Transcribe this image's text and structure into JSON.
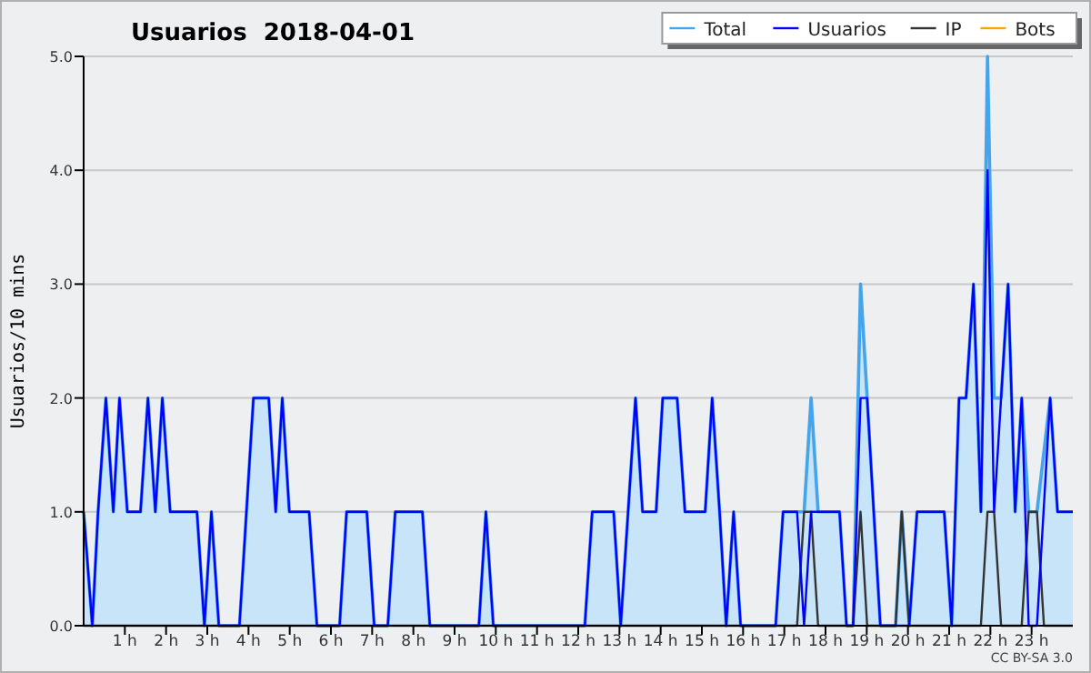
{
  "chart_data": {
    "type": "line",
    "title": "Usuarios  2018-04-01",
    "ylabel": "Usuarios/10 mins",
    "xlim": [
      0,
      24
    ],
    "xticks": [
      {
        "value": 1,
        "label": "1 h"
      },
      {
        "value": 2,
        "label": "2 h"
      },
      {
        "value": 3,
        "label": "3 h"
      },
      {
        "value": 4,
        "label": "4 h"
      },
      {
        "value": 5,
        "label": "5 h"
      },
      {
        "value": 6,
        "label": "6 h"
      },
      {
        "value": 7,
        "label": "7 h"
      },
      {
        "value": 8,
        "label": "8 h"
      },
      {
        "value": 9,
        "label": "9 h"
      },
      {
        "value": 10,
        "label": "10 h"
      },
      {
        "value": 11,
        "label": "11 h"
      },
      {
        "value": 12,
        "label": "12 h"
      },
      {
        "value": 13,
        "label": "13 h"
      },
      {
        "value": 14,
        "label": "14 h"
      },
      {
        "value": 15,
        "label": "15 h"
      },
      {
        "value": 16,
        "label": "16 h"
      },
      {
        "value": 17,
        "label": "17 h"
      },
      {
        "value": 18,
        "label": "18 h"
      },
      {
        "value": 19,
        "label": "19 h"
      },
      {
        "value": 20,
        "label": "20 h"
      },
      {
        "value": 21,
        "label": "21 h"
      },
      {
        "value": 22,
        "label": "22 h"
      },
      {
        "value": 23,
        "label": "23 h"
      }
    ],
    "ylim": [
      0,
      5
    ],
    "yticks": [
      {
        "value": 0,
        "label": "0.0"
      },
      {
        "value": 1,
        "label": "1.0"
      },
      {
        "value": 2,
        "label": "2.0"
      },
      {
        "value": 3,
        "label": "3.0"
      },
      {
        "value": 4,
        "label": "4.0"
      },
      {
        "value": 5,
        "label": "5.0"
      }
    ],
    "grid": "y",
    "legend": "top right",
    "marker": "none",
    "line_style": "solid",
    "annotations": [
      "CC BY-SA 3.0"
    ],
    "series": [
      {
        "name": "Total",
        "type": "area",
        "color": "#44a4ec",
        "x": [
          0,
          0.21,
          0.35,
          0.54,
          0.72,
          0.87,
          1.06,
          1.38,
          1.56,
          1.74,
          1.91,
          2.1,
          2.75,
          2.93,
          3.1,
          3.28,
          3.78,
          4.12,
          4.49,
          4.66,
          4.82,
          4.99,
          5.47,
          5.66,
          6.21,
          6.38,
          6.87,
          7.05,
          7.38,
          7.56,
          8.22,
          8.4,
          9.59,
          9.76,
          9.94,
          12.16,
          12.34,
          12.86,
          13.03,
          13.21,
          13.39,
          13.56,
          13.89,
          14.05,
          14.4,
          14.59,
          15.08,
          15.25,
          15.43,
          15.59,
          15.77,
          15.94,
          16.79,
          16.97,
          17.31,
          17.48,
          17.65,
          17.82,
          18.34,
          18.51,
          18.67,
          18.85,
          19.01,
          19.33,
          19.7,
          19.85,
          20.03,
          20.22,
          20.88,
          21.06,
          21.24,
          21.41,
          21.59,
          21.77,
          21.93,
          22.09,
          22.26,
          22.43,
          22.6,
          22.76,
          22.93,
          23.13,
          23.45,
          23.63,
          24
        ],
        "values": [
          1,
          0,
          1,
          2,
          1,
          2,
          1,
          1,
          2,
          1,
          2,
          1,
          1,
          0,
          1,
          0,
          0,
          2,
          2,
          1,
          2,
          1,
          1,
          0,
          0,
          1,
          1,
          0,
          0,
          1,
          1,
          0,
          0,
          1,
          0,
          0,
          1,
          1,
          0,
          1,
          2,
          1,
          1,
          2,
          2,
          1,
          1,
          2,
          1,
          0,
          1,
          0,
          0,
          1,
          1,
          1,
          2,
          1,
          1,
          0,
          0,
          3,
          2,
          0,
          0,
          1,
          0,
          1,
          1,
          0,
          2,
          2,
          3,
          1,
          5,
          2,
          2,
          3,
          1,
          2,
          1,
          1,
          2,
          1,
          1
        ]
      },
      {
        "name": "Usuarios",
        "color": "#0000ff",
        "x": [
          0,
          0.21,
          0.35,
          0.54,
          0.72,
          0.87,
          1.06,
          1.38,
          1.56,
          1.74,
          1.91,
          2.1,
          2.75,
          2.93,
          3.1,
          3.28,
          3.78,
          4.12,
          4.49,
          4.66,
          4.82,
          4.99,
          5.47,
          5.66,
          6.21,
          6.38,
          6.87,
          7.05,
          7.38,
          7.56,
          8.22,
          8.4,
          9.59,
          9.76,
          9.94,
          12.16,
          12.34,
          12.86,
          13.03,
          13.21,
          13.39,
          13.56,
          13.89,
          14.05,
          14.4,
          14.59,
          15.08,
          15.25,
          15.43,
          15.59,
          15.77,
          15.94,
          16.79,
          16.97,
          17.31,
          17.48,
          17.65,
          18.34,
          18.51,
          18.67,
          18.85,
          19.01,
          19.33,
          20.03,
          20.22,
          20.88,
          21.06,
          21.24,
          21.41,
          21.59,
          21.77,
          21.93,
          22.09,
          22.26,
          22.43,
          22.6,
          22.76,
          22.93,
          23.13,
          23.45,
          23.63,
          24
        ],
        "values": [
          1,
          0,
          1,
          2,
          1,
          2,
          1,
          1,
          2,
          1,
          2,
          1,
          1,
          0,
          1,
          0,
          0,
          2,
          2,
          1,
          2,
          1,
          1,
          0,
          0,
          1,
          1,
          0,
          0,
          1,
          1,
          0,
          0,
          1,
          0,
          0,
          1,
          1,
          0,
          1,
          2,
          1,
          1,
          2,
          2,
          1,
          1,
          2,
          1,
          0,
          1,
          0,
          0,
          1,
          1,
          0,
          1,
          1,
          0,
          0,
          2,
          2,
          0,
          0,
          1,
          1,
          0,
          2,
          2,
          3,
          1,
          4,
          1,
          2,
          3,
          1,
          2,
          0,
          0,
          2,
          1,
          1
        ]
      },
      {
        "name": "IP",
        "color": "#333333",
        "x": [
          0,
          17.31,
          17.48,
          17.65,
          17.82,
          18.67,
          18.85,
          19.01,
          19.7,
          19.85,
          20.03,
          21.77,
          21.93,
          22.09,
          22.26,
          22.76,
          22.93,
          23.13,
          23.3,
          24
        ],
        "values": [
          0,
          0,
          1,
          1,
          0,
          0,
          1,
          0,
          0,
          1,
          0,
          0,
          1,
          1,
          0,
          0,
          1,
          1,
          0,
          0
        ]
      },
      {
        "name": "Bots",
        "color": "#ffa500"
      }
    ]
  }
}
